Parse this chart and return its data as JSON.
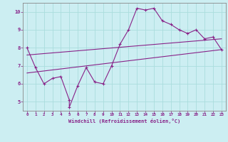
{
  "background_color": "#cceef2",
  "grid_color": "#aadddd",
  "line_color": "#882288",
  "xlabel": "Windchill (Refroidissement éolien,°C)",
  "xlim": [
    -0.5,
    23.5
  ],
  "ylim": [
    4.5,
    10.5
  ],
  "xticks": [
    0,
    1,
    2,
    3,
    4,
    5,
    6,
    7,
    8,
    9,
    10,
    11,
    12,
    13,
    14,
    15,
    16,
    17,
    18,
    19,
    20,
    21,
    22,
    23
  ],
  "yticks": [
    5,
    6,
    7,
    8,
    9,
    10
  ],
  "series1_x": [
    0,
    1,
    2,
    3,
    4,
    5,
    5,
    6,
    7,
    8,
    9,
    10,
    11,
    12,
    13,
    14,
    15,
    16,
    17,
    18,
    19,
    20,
    21,
    22,
    23
  ],
  "series1_y": [
    8.0,
    6.9,
    6.0,
    6.3,
    6.4,
    5.1,
    4.7,
    5.9,
    6.9,
    6.1,
    6.0,
    7.0,
    8.2,
    9.0,
    10.2,
    10.1,
    10.2,
    9.5,
    9.3,
    9.0,
    8.8,
    9.0,
    8.5,
    8.6,
    7.9
  ],
  "line2_x": [
    0,
    23
  ],
  "line2_y": [
    6.6,
    7.9
  ],
  "line3_x": [
    0,
    23
  ],
  "line3_y": [
    7.6,
    8.5
  ]
}
